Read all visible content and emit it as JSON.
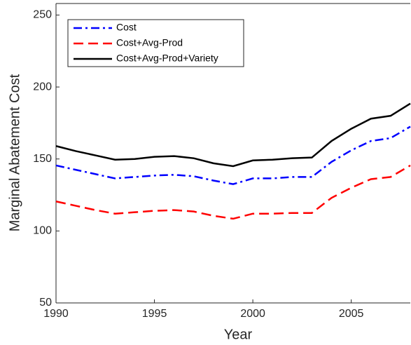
{
  "chart_data": {
    "type": "line",
    "x_label": "Year",
    "y_label": "Marginal Abatement Cost",
    "x": [
      1990,
      1991,
      1992,
      1993,
      1994,
      1995,
      1996,
      1997,
      1998,
      1999,
      2000,
      2001,
      2002,
      2003,
      2004,
      2005,
      2006,
      2007,
      2008
    ],
    "series": [
      {
        "name": "Cost",
        "color": "#0000ff",
        "linestyle": "-.",
        "values": [
          145.5,
          142.5,
          139.5,
          136.5,
          137.5,
          138.5,
          139,
          138,
          135,
          132.5,
          136.5,
          136.5,
          137.5,
          137.5,
          148,
          156,
          162.5,
          164.5,
          172.5
        ]
      },
      {
        "name": "Cost+Avg-Prod",
        "color": "#ff0000",
        "linestyle": "--",
        "values": [
          120.5,
          117.5,
          114.5,
          112,
          113,
          114,
          114.5,
          113.5,
          110.5,
          108.5,
          112,
          112,
          112.5,
          112.5,
          123,
          130,
          136,
          137.5,
          145.5
        ]
      },
      {
        "name": "Cost+Avg-Prod+Variety",
        "color": "#000000",
        "linestyle": "-",
        "values": [
          159,
          155.5,
          152.5,
          149.5,
          150,
          151.5,
          152,
          150.5,
          147,
          145,
          149,
          149.5,
          150.5,
          151,
          162.5,
          171,
          178,
          180,
          188.5
        ]
      }
    ],
    "xlim": [
      1990,
      2008
    ],
    "xticks": [
      1990,
      1995,
      2000,
      2005
    ],
    "ylim": [
      50,
      258
    ],
    "yticks": [
      50,
      100,
      150,
      200,
      250
    ],
    "grid": false,
    "legend_position": "upper-left"
  }
}
